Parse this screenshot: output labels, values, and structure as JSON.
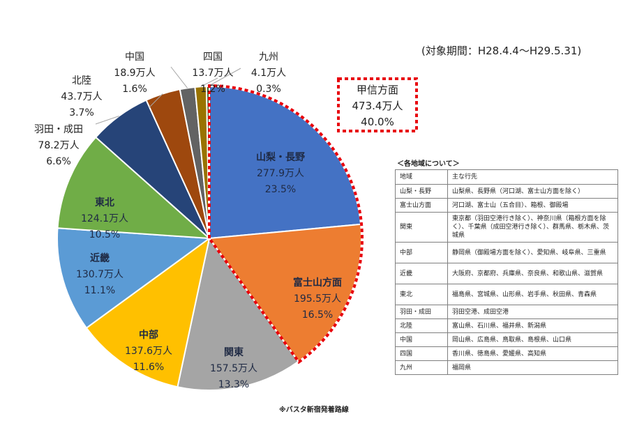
{
  "chart_data": {
    "type": "pie",
    "period_note": "(対象期間：H28.4.4～H29.5.31)",
    "source_note": "※バスタ新宿発着路線",
    "slices": [
      {
        "name": "山梨・長野",
        "people": "277.9万人",
        "value": 23.5,
        "color": "#4472C4",
        "label_color": "#1f2a44"
      },
      {
        "name": "富士山方面",
        "people": "195.5万人",
        "value": 16.5,
        "color": "#ED7D31",
        "label_color": "#1f2a44"
      },
      {
        "name": "関東",
        "people": "157.5万人",
        "value": 13.3,
        "color": "#A5A5A5",
        "label_color": "#1f2a44"
      },
      {
        "name": "中部",
        "people": "137.6万人",
        "value": 11.6,
        "color": "#FFC000",
        "label_color": "#1f2a44"
      },
      {
        "name": "近畿",
        "people": "130.7万人",
        "value": 11.1,
        "color": "#5B9BD5",
        "label_color": "#1f2a44"
      },
      {
        "name": "東北",
        "people": "124.1万人",
        "value": 10.5,
        "color": "#70AD47",
        "label_color": "#1f2a44"
      },
      {
        "name": "羽田・成田",
        "people": "78.2万人",
        "value": 6.6,
        "color": "#264478",
        "label_color": "#222222"
      },
      {
        "name": "北陸",
        "people": "43.7万人",
        "value": 3.7,
        "color": "#9E480E",
        "label_color": "#222222"
      },
      {
        "name": "中国",
        "people": "18.9万人",
        "value": 1.6,
        "color": "#636363",
        "label_color": "#222222"
      },
      {
        "name": "四国",
        "people": "13.7万人",
        "value": 1.2,
        "color": "#997300",
        "label_color": "#222222"
      },
      {
        "name": "九州",
        "people": "4.1万人",
        "value": 0.3,
        "color": "#43682B",
        "label_color": "#222222"
      }
    ],
    "group_highlight": {
      "name": "甲信方面",
      "people": "473.4万人",
      "percent": "40.0%",
      "includes": [
        "山梨・長野",
        "富士山方面"
      ],
      "border_color": "#E8000B"
    }
  },
  "reference_table": {
    "title": "＜各地域について＞",
    "headers": [
      "地域",
      "主な行先"
    ],
    "rows": [
      {
        "region": "山梨・長野",
        "destinations": "山梨県、長野県（河口湖、富士山方面を除く）"
      },
      {
        "region": "富士山方面",
        "destinations": "河口湖、富士山（五合目）、箱根、御殿場"
      },
      {
        "region": "関東",
        "destinations": "東京都（羽田空港行き除く）、神奈川県（箱根方面を除く）、千葉県（成田空港行き除く）、群馬県、栃木県、茨城県"
      },
      {
        "region": "中部",
        "destinations": "静岡県（御殿場方面を除く）、愛知県、岐阜県、三重県"
      },
      {
        "region": "近畿",
        "destinations": "大阪府、京都府、兵庫県、奈良県、和歌山県、滋賀県"
      },
      {
        "region": "東北",
        "destinations": "福島県、宮城県、山形県、岩手県、秋田県、青森県"
      },
      {
        "region": "羽田・成田",
        "destinations": "羽田空港、成田空港"
      },
      {
        "region": "北陸",
        "destinations": "富山県、石川県、福井県、新潟県"
      },
      {
        "region": "中国",
        "destinations": "岡山県、広島県、鳥取県、島根県、山口県"
      },
      {
        "region": "四国",
        "destinations": "香川県、徳島県、愛媛県、高知県"
      },
      {
        "region": "九州",
        "destinations": "福岡県"
      }
    ]
  }
}
